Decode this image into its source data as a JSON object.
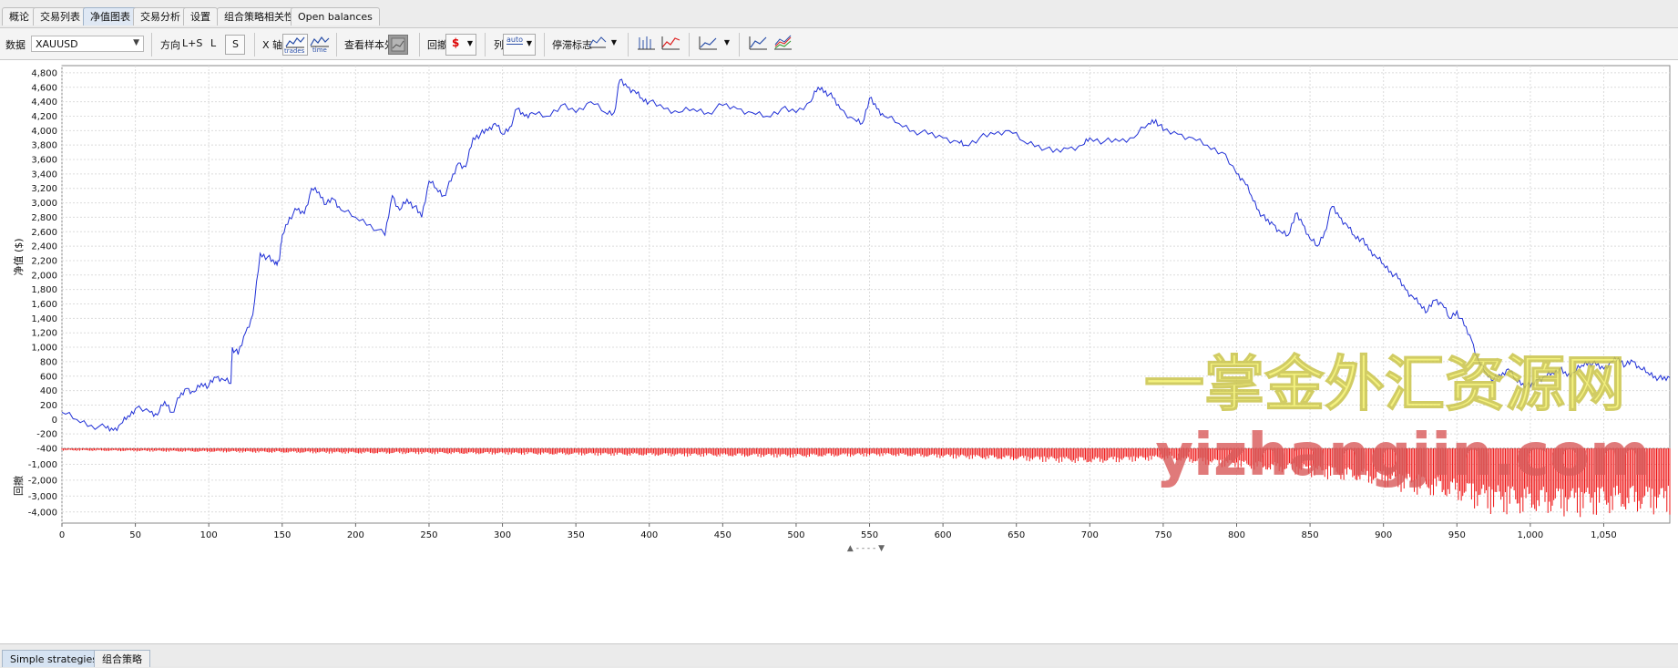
{
  "tabs": [
    {
      "label": "概论"
    },
    {
      "label": "交易列表"
    },
    {
      "label": "净值图表",
      "active": true
    },
    {
      "label": "交易分析"
    },
    {
      "label": "设置"
    },
    {
      "label": "组合策略相关性"
    },
    {
      "label": "Open balances"
    }
  ],
  "toolbar": {
    "data_label": "数据",
    "data_value": "XAUUSD",
    "direction_label": "方向",
    "dir_ls": "L+S",
    "dir_l": "L",
    "dir_s": "S",
    "xaxis_label": "X 轴",
    "xaxis_trades": "trades",
    "xaxis_time": "time",
    "oos_label": "查看样本外",
    "drawdown_label": "回撤",
    "drawdown_icon_text": "$",
    "col_label": "列",
    "col_icon_text": "auto",
    "stop_label": "停滞标志"
  },
  "chart_data": {
    "type": "line",
    "x_ticks": [
      0,
      50,
      100,
      150,
      200,
      250,
      300,
      350,
      400,
      450,
      500,
      550,
      600,
      650,
      700,
      750,
      800,
      850,
      900,
      950,
      1000,
      1050
    ],
    "x_tick_labels": [
      "0",
      "50",
      "100",
      "150",
      "200",
      "250",
      "300",
      "350",
      "400",
      "450",
      "500",
      "550",
      "600",
      "650",
      "700",
      "750",
      "800",
      "850",
      "900",
      "950",
      "1,000",
      "1,050"
    ],
    "xlim": [
      0,
      1095
    ],
    "equity": {
      "ylabel": "净值 ($)",
      "ylim": [
        -400,
        4900
      ],
      "y_ticks": [
        -400,
        -200,
        0,
        200,
        400,
        600,
        800,
        1000,
        1200,
        1400,
        1600,
        1800,
        2000,
        2200,
        2400,
        2600,
        2800,
        3000,
        3200,
        3400,
        3600,
        3800,
        4000,
        4200,
        4400,
        4600,
        4800
      ],
      "y_tick_labels": [
        "-400",
        "-200",
        "0",
        "200",
        "400",
        "600",
        "800",
        "1,000",
        "1,200",
        "1,400",
        "1,600",
        "1,800",
        "2,000",
        "2,200",
        "2,400",
        "2,600",
        "2,800",
        "3,000",
        "3,200",
        "3,400",
        "3,600",
        "3,800",
        "4,000",
        "4,200",
        "4,400",
        "4,600",
        "4,800"
      ],
      "color": "#1f2fd6",
      "points": [
        [
          0,
          100
        ],
        [
          10,
          0
        ],
        [
          20,
          -80
        ],
        [
          30,
          -120
        ],
        [
          35,
          -150
        ],
        [
          40,
          -60
        ],
        [
          45,
          50
        ],
        [
          50,
          150
        ],
        [
          60,
          100
        ],
        [
          65,
          60
        ],
        [
          70,
          250
        ],
        [
          75,
          100
        ],
        [
          80,
          300
        ],
        [
          85,
          430
        ],
        [
          90,
          380
        ],
        [
          95,
          500
        ],
        [
          100,
          470
        ],
        [
          105,
          580
        ],
        [
          110,
          550
        ],
        [
          115,
          500
        ],
        [
          116,
          1000
        ],
        [
          120,
          900
        ],
        [
          125,
          1200
        ],
        [
          130,
          1450
        ],
        [
          135,
          2300
        ],
        [
          140,
          2250
        ],
        [
          145,
          2150
        ],
        [
          148,
          2200
        ],
        [
          150,
          2550
        ],
        [
          155,
          2800
        ],
        [
          160,
          2900
        ],
        [
          165,
          2850
        ],
        [
          170,
          3200
        ],
        [
          175,
          3150
        ],
        [
          180,
          2980
        ],
        [
          185,
          3050
        ],
        [
          190,
          2900
        ],
        [
          200,
          2800
        ],
        [
          210,
          2700
        ],
        [
          220,
          2550
        ],
        [
          225,
          3100
        ],
        [
          230,
          2900
        ],
        [
          235,
          3050
        ],
        [
          240,
          2950
        ],
        [
          245,
          2800
        ],
        [
          250,
          3300
        ],
        [
          255,
          3200
        ],
        [
          260,
          3100
        ],
        [
          265,
          3300
        ],
        [
          270,
          3550
        ],
        [
          275,
          3500
        ],
        [
          280,
          3900
        ],
        [
          285,
          3950
        ],
        [
          290,
          4000
        ],
        [
          295,
          4100
        ],
        [
          300,
          3950
        ],
        [
          305,
          4050
        ],
        [
          310,
          4300
        ],
        [
          315,
          4200
        ],
        [
          320,
          4250
        ],
        [
          330,
          4200
        ],
        [
          340,
          4350
        ],
        [
          350,
          4250
        ],
        [
          360,
          4400
        ],
        [
          370,
          4250
        ],
        [
          376,
          4250
        ],
        [
          380,
          4700
        ],
        [
          385,
          4600
        ],
        [
          390,
          4550
        ],
        [
          395,
          4450
        ],
        [
          400,
          4400
        ],
        [
          410,
          4300
        ],
        [
          420,
          4250
        ],
        [
          430,
          4300
        ],
        [
          440,
          4250
        ],
        [
          450,
          4350
        ],
        [
          460,
          4300
        ],
        [
          470,
          4250
        ],
        [
          480,
          4200
        ],
        [
          490,
          4300
        ],
        [
          500,
          4250
        ],
        [
          510,
          4400
        ],
        [
          515,
          4600
        ],
        [
          520,
          4550
        ],
        [
          525,
          4450
        ],
        [
          530,
          4300
        ],
        [
          540,
          4150
        ],
        [
          545,
          4100
        ],
        [
          550,
          4450
        ],
        [
          555,
          4300
        ],
        [
          560,
          4200
        ],
        [
          570,
          4100
        ],
        [
          580,
          4000
        ],
        [
          590,
          3950
        ],
        [
          600,
          3900
        ],
        [
          610,
          3850
        ],
        [
          615,
          3800
        ],
        [
          625,
          3900
        ],
        [
          635,
          3950
        ],
        [
          645,
          4000
        ],
        [
          655,
          3850
        ],
        [
          665,
          3800
        ],
        [
          675,
          3700
        ],
        [
          685,
          3750
        ],
        [
          695,
          3800
        ],
        [
          700,
          3900
        ],
        [
          710,
          3850
        ],
        [
          720,
          3850
        ],
        [
          730,
          3900
        ],
        [
          740,
          4100
        ],
        [
          745,
          4150
        ],
        [
          750,
          4000
        ],
        [
          760,
          3950
        ],
        [
          770,
          3900
        ],
        [
          780,
          3800
        ],
        [
          790,
          3700
        ],
        [
          800,
          3400
        ],
        [
          805,
          3300
        ],
        [
          810,
          3100
        ],
        [
          815,
          2900
        ],
        [
          820,
          2750
        ],
        [
          825,
          2700
        ],
        [
          830,
          2600
        ],
        [
          835,
          2550
        ],
        [
          840,
          2850
        ],
        [
          845,
          2700
        ],
        [
          850,
          2500
        ],
        [
          855,
          2400
        ],
        [
          860,
          2600
        ],
        [
          865,
          2950
        ],
        [
          870,
          2800
        ],
        [
          875,
          2700
        ],
        [
          880,
          2550
        ],
        [
          885,
          2500
        ],
        [
          890,
          2350
        ],
        [
          895,
          2250
        ],
        [
          900,
          2150
        ],
        [
          905,
          2050
        ],
        [
          910,
          1950
        ],
        [
          915,
          1800
        ],
        [
          920,
          1700
        ],
        [
          925,
          1600
        ],
        [
          930,
          1500
        ],
        [
          935,
          1650
        ],
        [
          940,
          1600
        ],
        [
          945,
          1400
        ],
        [
          950,
          1500
        ],
        [
          955,
          1300
        ],
        [
          960,
          1100
        ],
        [
          965,
          800
        ],
        [
          970,
          650
        ],
        [
          975,
          550
        ],
        [
          980,
          600
        ],
        [
          985,
          700
        ],
        [
          990,
          550
        ],
        [
          995,
          500
        ],
        [
          1000,
          450
        ],
        [
          1005,
          550
        ],
        [
          1010,
          600
        ],
        [
          1015,
          650
        ],
        [
          1020,
          700
        ],
        [
          1025,
          600
        ],
        [
          1030,
          650
        ],
        [
          1035,
          750
        ],
        [
          1040,
          800
        ],
        [
          1045,
          750
        ],
        [
          1050,
          700
        ],
        [
          1055,
          800
        ],
        [
          1060,
          850
        ],
        [
          1065,
          750
        ],
        [
          1070,
          800
        ],
        [
          1075,
          700
        ],
        [
          1080,
          650
        ],
        [
          1085,
          600
        ],
        [
          1090,
          550
        ],
        [
          1095,
          580
        ]
      ]
    },
    "drawdown": {
      "ylabel": "回撤",
      "ylim": [
        -4700,
        0
      ],
      "y_ticks": [
        -1000,
        -2000,
        -3000,
        -4000
      ],
      "y_tick_labels": [
        "-1,000",
        "-2,000",
        "-3,000",
        "-4,000"
      ],
      "color": "#ee1111",
      "envelope": [
        [
          0,
          -150
        ],
        [
          100,
          -250
        ],
        [
          200,
          -350
        ],
        [
          300,
          -400
        ],
        [
          400,
          -500
        ],
        [
          500,
          -600
        ],
        [
          560,
          -500
        ],
        [
          650,
          -800
        ],
        [
          700,
          -1000
        ],
        [
          750,
          -750
        ],
        [
          800,
          -1300
        ],
        [
          850,
          -1800
        ],
        [
          900,
          -2500
        ],
        [
          950,
          -3500
        ],
        [
          970,
          -4100
        ],
        [
          1000,
          -4400
        ],
        [
          1050,
          -4300
        ],
        [
          1095,
          -4200
        ]
      ]
    }
  },
  "watermark": {
    "line1": "一掌金外汇资源网",
    "line2": "yizhangjin.com"
  },
  "bottom_tabs": [
    {
      "label": "Simple strategies",
      "active": true
    },
    {
      "label": "组合策略"
    }
  ]
}
